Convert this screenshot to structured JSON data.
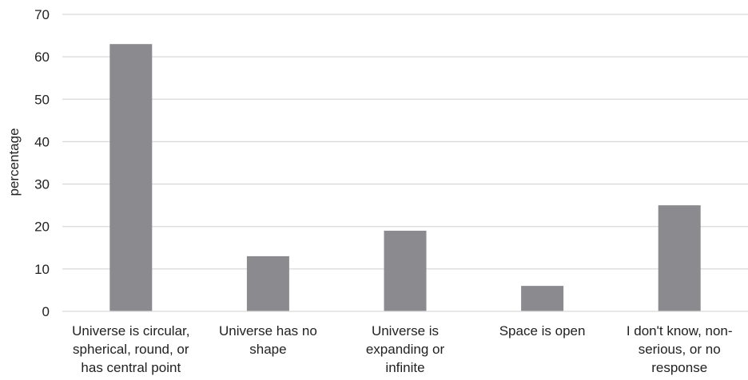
{
  "chart_data": {
    "type": "bar",
    "title": "",
    "xlabel": "",
    "ylabel": "percentage",
    "ylim": [
      0,
      70
    ],
    "yticks": [
      "0",
      "10",
      "20",
      "30",
      "40",
      "50",
      "60",
      "70"
    ],
    "grid": true,
    "legend": "none",
    "bar_color": "#8b8b8f",
    "categories": [
      [
        "Universe is circular,",
        "spherical, round, or",
        "has central point"
      ],
      [
        "Universe has no",
        "shape"
      ],
      [
        "Universe is",
        "expanding or",
        "infinite"
      ],
      [
        "Space is open"
      ],
      [
        "I don't know, non-",
        "serious, or no",
        "response"
      ]
    ],
    "values": [
      63,
      13,
      19,
      6,
      25
    ]
  }
}
